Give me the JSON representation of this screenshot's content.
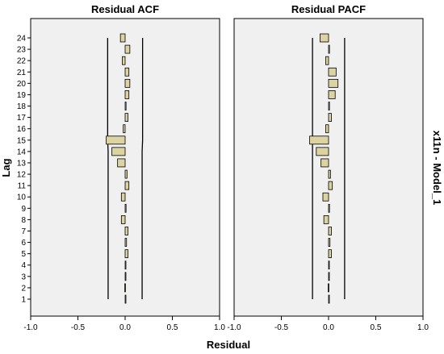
{
  "chart_data": {
    "type": "bar",
    "orientation": "horizontal",
    "y_axis_title": "Lag",
    "x_axis_title": "Residual",
    "row_label": "x11n - Model_1",
    "lags": [
      1,
      2,
      3,
      4,
      5,
      6,
      7,
      8,
      9,
      10,
      11,
      12,
      13,
      14,
      15,
      16,
      17,
      18,
      19,
      20,
      21,
      22,
      23,
      24
    ],
    "xlim": [
      -1.0,
      1.0
    ],
    "x_ticks": [
      "-1.0",
      "-0.5",
      "0.0",
      "0.5",
      "1.0"
    ],
    "x_tick_values": [
      -1.0,
      -0.5,
      0.0,
      0.5,
      1.0
    ],
    "grid": false,
    "bar_color": "#dcd3a0",
    "panels": [
      {
        "title": "Residual ACF",
        "values": [
          0.005,
          -0.005,
          0.0,
          0.005,
          0.03,
          0.015,
          0.03,
          -0.04,
          0.01,
          -0.04,
          0.04,
          0.02,
          -0.08,
          -0.14,
          -0.2,
          -0.02,
          0.03,
          0.01,
          0.04,
          0.05,
          0.04,
          -0.03,
          0.05,
          -0.05
        ],
        "confidence_limit": [
          0.18,
          0.18,
          0.18,
          0.18,
          0.18,
          0.18,
          0.18,
          0.18,
          0.18,
          0.18,
          0.18,
          0.18,
          0.18,
          0.18,
          0.185,
          0.185,
          0.185,
          0.185,
          0.185,
          0.185,
          0.185,
          0.185,
          0.185,
          0.185
        ]
      },
      {
        "title": "Residual PACF",
        "values": [
          0.005,
          -0.005,
          0.0,
          0.005,
          0.03,
          0.015,
          0.03,
          -0.05,
          0.01,
          -0.06,
          0.04,
          0.02,
          -0.08,
          -0.13,
          -0.2,
          -0.03,
          0.03,
          0.01,
          0.07,
          0.1,
          0.08,
          -0.03,
          0.01,
          -0.09
        ],
        "confidence_limit": [
          0.17,
          0.17,
          0.17,
          0.17,
          0.17,
          0.17,
          0.17,
          0.17,
          0.17,
          0.17,
          0.17,
          0.17,
          0.17,
          0.17,
          0.17,
          0.17,
          0.17,
          0.17,
          0.17,
          0.17,
          0.17,
          0.17,
          0.17,
          0.17
        ]
      }
    ]
  }
}
